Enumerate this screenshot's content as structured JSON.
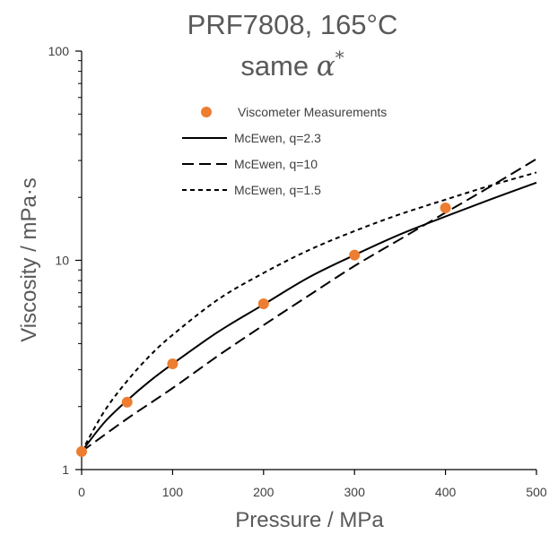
{
  "chart_data": {
    "type": "scatter",
    "title": "PRF7808, 165°C",
    "subtitle_prefix": "same ",
    "subtitle_symbol": "α",
    "subtitle_sup": "*",
    "xlabel": "Pressure / MPa",
    "ylabel": "Viscosity / mPa·s",
    "xlim": [
      0,
      500
    ],
    "ylim": [
      1,
      100
    ],
    "y_scale": "log",
    "x_ticks": [
      "0",
      "100",
      "200",
      "300",
      "400",
      "500"
    ],
    "x_tick_values": [
      0,
      100,
      200,
      300,
      400,
      500
    ],
    "y_ticks": [
      "1",
      "10",
      "100"
    ],
    "y_tick_values": [
      1,
      10,
      100
    ],
    "grid": false,
    "legend_position": "top-center",
    "series": [
      {
        "name": "Viscometer Measurements",
        "kind": "markers",
        "color": "#ED7D31",
        "x": [
          0,
          50,
          100,
          200,
          300,
          400
        ],
        "y": [
          1.22,
          2.1,
          3.2,
          6.2,
          10.6,
          17.8
        ]
      },
      {
        "name": "McEwen, q=2.3",
        "kind": "line",
        "dash": "solid",
        "color": "#000000",
        "x": [
          0,
          25,
          50,
          75,
          100,
          150,
          200,
          250,
          300,
          350,
          400,
          450,
          500
        ],
        "y": [
          1.22,
          1.68,
          2.14,
          2.65,
          3.2,
          4.55,
          6.15,
          8.3,
          10.6,
          13.3,
          16.2,
          19.6,
          23.5
        ]
      },
      {
        "name": "McEwen, q=10",
        "kind": "line",
        "dash": "long-dash",
        "color": "#000000",
        "x": [
          0,
          50,
          100,
          150,
          200,
          250,
          300,
          350,
          400,
          450,
          500
        ],
        "y": [
          1.22,
          1.75,
          2.45,
          3.5,
          4.9,
          6.8,
          9.4,
          12.6,
          16.9,
          22.6,
          30.5
        ]
      },
      {
        "name": "McEwen, q=1.5",
        "kind": "line",
        "dash": "short-dash",
        "color": "#000000",
        "x": [
          0,
          25,
          50,
          75,
          100,
          150,
          200,
          250,
          300,
          350,
          400,
          450,
          500
        ],
        "y": [
          1.22,
          1.9,
          2.65,
          3.5,
          4.4,
          6.5,
          8.7,
          11.2,
          13.8,
          16.6,
          19.5,
          22.8,
          26.3
        ]
      }
    ]
  }
}
